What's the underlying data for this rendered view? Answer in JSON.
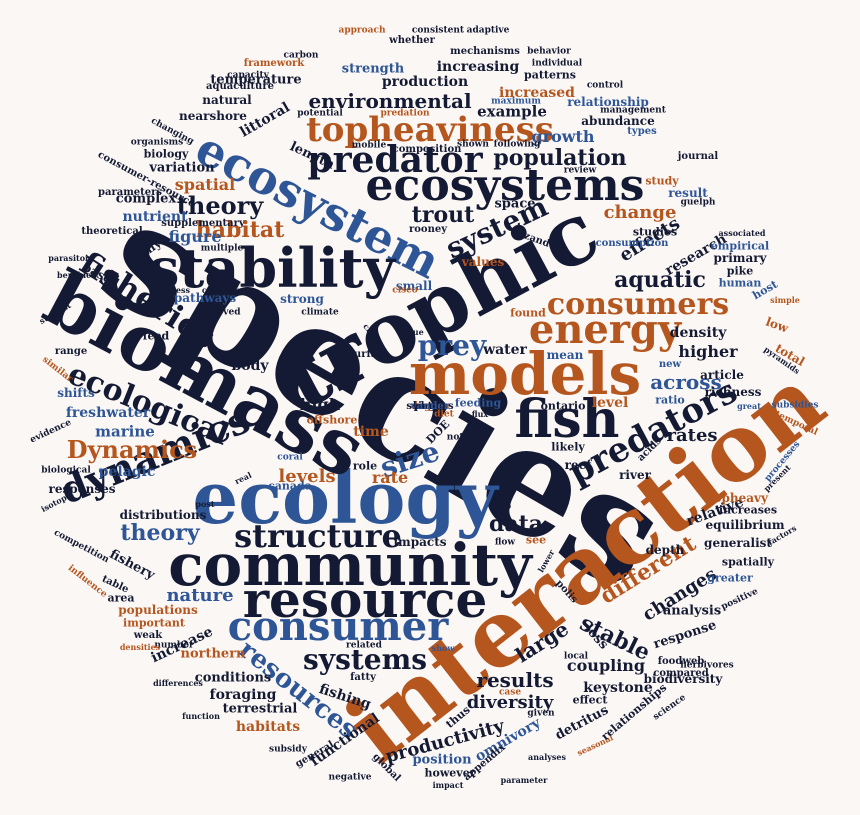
{
  "palette": {
    "navy": "#141a33",
    "blue": "#2e5596",
    "orange": "#b5561f"
  },
  "words": [
    {
      "t": "species",
      "c": "navy"
    },
    {
      "t": "interaction",
      "c": "orange"
    },
    {
      "t": "ecology",
      "c": "blue"
    },
    {
      "t": "trophic",
      "c": "navy"
    },
    {
      "t": "biomass",
      "c": "navy"
    },
    {
      "t": "community",
      "c": "navy"
    },
    {
      "t": "models",
      "c": "orange"
    },
    {
      "t": "resource",
      "c": "navy"
    },
    {
      "t": "ecosystem",
      "c": "blue"
    },
    {
      "t": "stability",
      "c": "navy"
    },
    {
      "t": "ecosystems",
      "c": "navy"
    },
    {
      "t": "fish",
      "c": "navy"
    },
    {
      "t": "energy",
      "c": "orange"
    },
    {
      "t": "consumer",
      "c": "blue"
    },
    {
      "t": "predator",
      "c": "navy"
    },
    {
      "t": "dynamics",
      "c": "navy"
    },
    {
      "t": "predators",
      "c": "navy"
    },
    {
      "t": "topheaviness",
      "c": "orange"
    },
    {
      "t": "fisheries",
      "c": "navy"
    },
    {
      "t": "structure",
      "c": "navy"
    },
    {
      "t": "consumers",
      "c": "orange"
    },
    {
      "t": "ecological",
      "c": "navy"
    },
    {
      "t": "system",
      "c": "navy"
    },
    {
      "t": "systems",
      "c": "navy"
    },
    {
      "t": "resources",
      "c": "blue"
    },
    {
      "t": "size",
      "c": "blue"
    },
    {
      "t": "prey",
      "c": "blue"
    },
    {
      "t": "Dynamics",
      "c": "orange"
    },
    {
      "t": "different",
      "c": "orange"
    },
    {
      "t": "stable",
      "c": "navy"
    },
    {
      "t": "population",
      "c": "navy"
    },
    {
      "t": "environmental",
      "c": "navy"
    },
    {
      "t": "theory",
      "c": "navy"
    },
    {
      "t": "theory",
      "c": "blue"
    },
    {
      "t": "habitat",
      "c": "orange"
    },
    {
      "t": "aquatic",
      "c": "navy"
    },
    {
      "t": "trout",
      "c": "navy"
    },
    {
      "t": "data",
      "c": "navy"
    },
    {
      "t": "results",
      "c": "navy"
    },
    {
      "t": "across",
      "c": "blue"
    },
    {
      "t": "large",
      "c": "navy"
    },
    {
      "t": "changes",
      "c": "navy"
    },
    {
      "t": "effects",
      "c": "navy"
    },
    {
      "t": "nature",
      "c": "blue"
    },
    {
      "t": "productivity",
      "c": "navy"
    },
    {
      "t": "diversity",
      "c": "navy"
    },
    {
      "t": "levels",
      "c": "orange"
    },
    {
      "t": "rates",
      "c": "navy"
    },
    {
      "t": "change",
      "c": "orange"
    },
    {
      "t": "growth",
      "c": "blue"
    },
    {
      "t": "increased",
      "c": "orange"
    },
    {
      "t": "production",
      "c": "navy"
    },
    {
      "t": "increasing",
      "c": "navy"
    },
    {
      "t": "example",
      "c": "navy"
    },
    {
      "t": "higher",
      "c": "navy"
    },
    {
      "t": "coupling",
      "c": "navy"
    },
    {
      "t": "fishing",
      "c": "navy"
    },
    {
      "t": "research",
      "c": "navy"
    },
    {
      "t": "spatial",
      "c": "orange"
    },
    {
      "t": "figure",
      "c": "blue"
    },
    {
      "t": "marine",
      "c": "blue"
    },
    {
      "t": "freshwater",
      "c": "blue"
    },
    {
      "t": "pelagic",
      "c": "blue"
    },
    {
      "t": "rate",
      "c": "orange"
    },
    {
      "t": "time",
      "c": "orange"
    },
    {
      "t": "high",
      "c": "navy"
    },
    {
      "t": "littoral",
      "c": "navy"
    },
    {
      "t": "omnivory",
      "c": "blue"
    },
    {
      "t": "functional",
      "c": "navy"
    },
    {
      "t": "density",
      "c": "navy"
    },
    {
      "t": "level",
      "c": "orange"
    },
    {
      "t": "relative",
      "c": "navy"
    },
    {
      "t": "analysis",
      "c": "navy"
    },
    {
      "t": "response",
      "c": "navy"
    },
    {
      "t": "increase",
      "c": "navy"
    },
    {
      "t": "body",
      "c": "navy"
    },
    {
      "t": "fishery",
      "c": "navy"
    },
    {
      "t": "nutrient",
      "c": "blue"
    },
    {
      "t": "complex",
      "c": "navy"
    },
    {
      "t": "variation",
      "c": "navy"
    },
    {
      "t": "space",
      "c": "navy"
    },
    {
      "t": "strength",
      "c": "blue"
    },
    {
      "t": "temperature",
      "c": "navy"
    },
    {
      "t": "patterns",
      "c": "navy"
    },
    {
      "t": "abundance",
      "c": "navy"
    },
    {
      "t": "relationship",
      "c": "blue"
    },
    {
      "t": "equilibrium",
      "c": "navy"
    },
    {
      "t": "increases",
      "c": "navy"
    },
    {
      "t": "primary",
      "c": "navy"
    },
    {
      "t": "article",
      "c": "navy"
    },
    {
      "t": "richness",
      "c": "navy"
    },
    {
      "t": "keystone",
      "c": "navy"
    },
    {
      "t": "foraging",
      "c": "navy"
    },
    {
      "t": "habitats",
      "c": "orange"
    },
    {
      "t": "conditions",
      "c": "navy"
    },
    {
      "t": "terrestrial",
      "c": "navy"
    },
    {
      "t": "position",
      "c": "blue"
    },
    {
      "t": "northern",
      "c": "orange"
    },
    {
      "t": "populations",
      "c": "orange"
    },
    {
      "t": "important",
      "c": "orange"
    },
    {
      "t": "detritus",
      "c": "navy"
    },
    {
      "t": "however",
      "c": "navy"
    },
    {
      "t": "responses",
      "c": "navy"
    },
    {
      "t": "distributions",
      "c": "navy"
    },
    {
      "t": "impacts",
      "c": "navy"
    },
    {
      "t": "pathways",
      "c": "blue"
    },
    {
      "t": "strong",
      "c": "blue"
    },
    {
      "t": "small",
      "c": "blue"
    },
    {
      "t": "values",
      "c": "orange"
    },
    {
      "t": "feed",
      "c": "navy"
    },
    {
      "t": "water",
      "c": "navy"
    },
    {
      "t": "mean",
      "c": "blue"
    },
    {
      "t": "likely",
      "c": "navy"
    },
    {
      "t": "see",
      "c": "orange"
    },
    {
      "t": "table",
      "c": "navy"
    },
    {
      "t": "area",
      "c": "navy"
    },
    {
      "t": "weak",
      "c": "navy"
    },
    {
      "t": "based",
      "c": "navy"
    },
    {
      "t": "many",
      "c": "navy"
    },
    {
      "t": "canada",
      "c": "blue"
    },
    {
      "t": "offshore",
      "c": "orange"
    },
    {
      "t": "feeding",
      "c": "blue"
    },
    {
      "t": "ontario",
      "c": "navy"
    },
    {
      "t": "found",
      "c": "orange"
    },
    {
      "t": "ratio",
      "c": "blue"
    },
    {
      "t": "new",
      "c": "blue"
    },
    {
      "t": "low",
      "c": "orange"
    },
    {
      "t": "total",
      "c": "orange"
    },
    {
      "t": "host",
      "c": "blue"
    },
    {
      "t": "pike",
      "c": "navy"
    },
    {
      "t": "human",
      "c": "blue"
    },
    {
      "t": "empirical",
      "c": "blue"
    },
    {
      "t": "consumption",
      "c": "blue"
    },
    {
      "t": "studies",
      "c": "navy"
    },
    {
      "t": "result",
      "c": "blue"
    },
    {
      "t": "study",
      "c": "orange"
    },
    {
      "t": "journal",
      "c": "navy"
    },
    {
      "t": "types",
      "c": "blue"
    },
    {
      "t": "length",
      "c": "navy"
    },
    {
      "t": "biology",
      "c": "navy"
    },
    {
      "t": "nearshore",
      "c": "navy"
    },
    {
      "t": "natural",
      "c": "navy"
    },
    {
      "t": "aquaculture",
      "c": "navy"
    },
    {
      "t": "framework",
      "c": "orange"
    },
    {
      "t": "carbon",
      "c": "navy"
    },
    {
      "t": "capacity",
      "c": "navy"
    },
    {
      "t": "potential",
      "c": "navy"
    },
    {
      "t": "predation",
      "c": "orange"
    },
    {
      "t": "maximum",
      "c": "blue"
    },
    {
      "t": "management",
      "c": "navy"
    },
    {
      "t": "control",
      "c": "navy"
    },
    {
      "t": "individual",
      "c": "navy"
    },
    {
      "t": "behavior",
      "c": "navy"
    },
    {
      "t": "mechanisms",
      "c": "navy"
    },
    {
      "t": "whether",
      "c": "navy"
    },
    {
      "t": "approach",
      "c": "orange"
    },
    {
      "t": "consistent",
      "c": "navy"
    },
    {
      "t": "adaptive",
      "c": "navy"
    },
    {
      "t": "changing",
      "c": "navy"
    },
    {
      "t": "organisms",
      "c": "navy"
    },
    {
      "t": "consumer-resource",
      "c": "navy"
    },
    {
      "t": "parameters",
      "c": "navy"
    },
    {
      "t": "supplementary",
      "c": "navy"
    },
    {
      "t": "theoretical",
      "c": "navy"
    },
    {
      "t": "parasitoid",
      "c": "navy"
    },
    {
      "t": "benthic",
      "c": "navy"
    },
    {
      "t": "suggest",
      "c": "navy"
    },
    {
      "t": "range",
      "c": "navy"
    },
    {
      "t": "similar",
      "c": "orange"
    },
    {
      "t": "shifts",
      "c": "blue"
    },
    {
      "t": "evidence",
      "c": "navy"
    },
    {
      "t": "biological",
      "c": "navy"
    },
    {
      "t": "isotope",
      "c": "navy"
    },
    {
      "t": "competition",
      "c": "navy"
    },
    {
      "t": "influence",
      "c": "orange"
    },
    {
      "t": "number",
      "c": "navy"
    },
    {
      "t": "densities",
      "c": "orange"
    },
    {
      "t": "differences",
      "c": "navy"
    },
    {
      "t": "function",
      "c": "navy"
    },
    {
      "t": "subsidy",
      "c": "navy"
    },
    {
      "t": "general",
      "c": "navy"
    },
    {
      "t": "negative",
      "c": "navy"
    },
    {
      "t": "global",
      "c": "navy"
    },
    {
      "t": "impact",
      "c": "navy"
    },
    {
      "t": "appendix",
      "c": "navy"
    },
    {
      "t": "parameter",
      "c": "navy"
    },
    {
      "t": "analyses",
      "c": "navy"
    },
    {
      "t": "seasonal",
      "c": "orange"
    },
    {
      "t": "relationships",
      "c": "navy"
    },
    {
      "t": "science",
      "c": "navy"
    },
    {
      "t": "compared",
      "c": "navy"
    },
    {
      "t": "foodweb",
      "c": "navy"
    },
    {
      "t": "biodiversity",
      "c": "navy"
    },
    {
      "t": "herbivores",
      "c": "navy"
    },
    {
      "t": "positive",
      "c": "navy"
    },
    {
      "t": "greater",
      "c": "blue"
    },
    {
      "t": "spatially",
      "c": "navy"
    },
    {
      "t": "generalist",
      "c": "navy"
    },
    {
      "t": "factors",
      "c": "navy"
    },
    {
      "t": "topheavy",
      "c": "orange"
    },
    {
      "t": "present",
      "c": "navy"
    },
    {
      "t": "processes",
      "c": "blue"
    },
    {
      "t": "temporal",
      "c": "orange"
    },
    {
      "t": "subsidies",
      "c": "blue"
    },
    {
      "t": "great",
      "c": "blue"
    },
    {
      "t": "pyramids",
      "c": "navy"
    },
    {
      "t": "simple",
      "c": "orange"
    },
    {
      "t": "associated",
      "c": "navy"
    },
    {
      "t": "guelph",
      "c": "navy"
    },
    {
      "t": "review",
      "c": "navy"
    },
    {
      "t": "following",
      "c": "navy"
    },
    {
      "t": "shown",
      "c": "navy"
    },
    {
      "t": "mobile",
      "c": "navy"
    },
    {
      "t": "composition",
      "c": "navy"
    },
    {
      "t": "rooney",
      "c": "navy"
    },
    {
      "t": "multiple",
      "c": "navy"
    },
    {
      "t": "zanden",
      "c": "navy"
    },
    {
      "t": "press",
      "c": "navy"
    },
    {
      "t": "common",
      "c": "navy"
    },
    {
      "t": "observed",
      "c": "navy"
    },
    {
      "t": "climate",
      "c": "navy"
    },
    {
      "t": "cisco",
      "c": "orange"
    },
    {
      "t": "chain",
      "c": "navy"
    },
    {
      "t": "cpue",
      "c": "navy"
    },
    {
      "t": "surface",
      "c": "navy"
    },
    {
      "t": "often",
      "c": "navy"
    },
    {
      "t": "diet",
      "c": "orange"
    },
    {
      "t": "flux",
      "c": "navy"
    },
    {
      "t": "DOE",
      "c": "navy"
    },
    {
      "t": "note",
      "c": "navy"
    },
    {
      "t": "role",
      "c": "navy"
    },
    {
      "t": "coral",
      "c": "blue"
    },
    {
      "t": "real",
      "c": "navy"
    },
    {
      "t": "due",
      "c": "navy"
    },
    {
      "t": "post",
      "c": "navy"
    },
    {
      "t": "top",
      "c": "navy"
    },
    {
      "t": "flow",
      "c": "navy"
    },
    {
      "t": "lower",
      "c": "navy"
    },
    {
      "t": "acids",
      "c": "navy"
    },
    {
      "t": "reef",
      "c": "navy"
    },
    {
      "t": "river",
      "c": "navy"
    },
    {
      "t": "depth",
      "c": "navy"
    },
    {
      "t": "polis",
      "c": "navy"
    },
    {
      "t": "loss",
      "c": "navy"
    },
    {
      "t": "local",
      "c": "navy"
    },
    {
      "t": "show",
      "c": "blue"
    },
    {
      "t": "case",
      "c": "orange"
    },
    {
      "t": "effect",
      "c": "navy"
    },
    {
      "t": "given",
      "c": "navy"
    },
    {
      "t": "thus",
      "c": "navy"
    },
    {
      "t": "fatty",
      "c": "navy"
    },
    {
      "t": "related",
      "c": "navy"
    },
    {
      "t": "phase",
      "c": "navy"
    },
    {
      "t": "sciences",
      "c": "navy"
    },
    {
      "t": "degree",
      "c": "orange"
    },
    {
      "t": "patch",
      "c": "navy"
    },
    {
      "t": "scale",
      "c": "navy"
    },
    {
      "t": "larger",
      "c": "navy"
    },
    {
      "t": "vander",
      "c": "blue"
    }
  ]
}
